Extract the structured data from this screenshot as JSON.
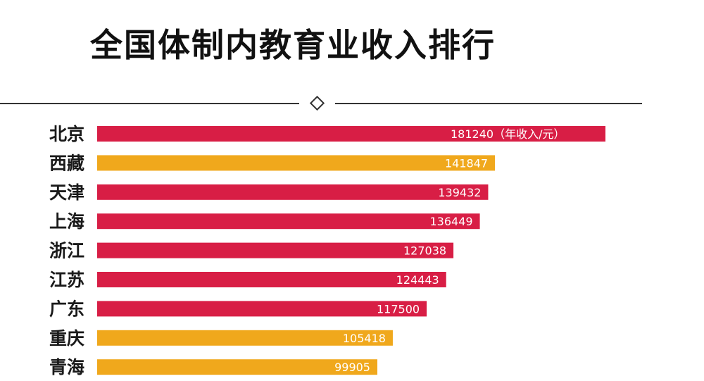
{
  "title": "全国体制内教育业收入排行",
  "chart_data": {
    "type": "bar",
    "orientation": "horizontal",
    "title": "全国体制内教育业收入排行",
    "unit_note": "（年收入/元）",
    "categories": [
      "北京",
      "西藏",
      "天津",
      "上海",
      "浙江",
      "江苏",
      "广东",
      "重庆",
      "青海"
    ],
    "values": [
      181240,
      141847,
      139432,
      136449,
      127038,
      124443,
      117500,
      105418,
      99905
    ],
    "bar_colors": [
      "#d81e45",
      "#f0a81c",
      "#d81e45",
      "#d81e45",
      "#d81e45",
      "#d81e45",
      "#d81e45",
      "#f0a81c",
      "#f0a81c"
    ],
    "grid": false,
    "legend": "none"
  }
}
